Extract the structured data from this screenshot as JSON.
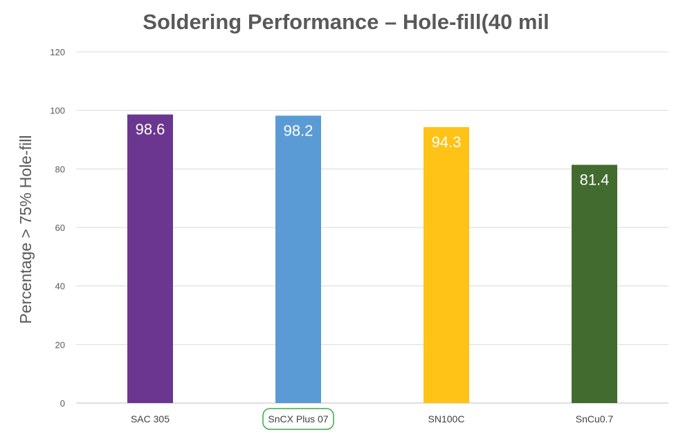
{
  "chart_data": {
    "type": "bar",
    "title": "Soldering Performance – Hole-fill(40 mil",
    "xlabel": "",
    "ylabel": "Percentage > 75% Hole-fill",
    "categories": [
      "SAC 305",
      "SnCX Plus 07",
      "SN100C",
      "SnCu0.7"
    ],
    "values": [
      98.6,
      98.2,
      94.3,
      81.4
    ],
    "data_labels": [
      "98.6",
      "98.2",
      "94.3",
      "81.4"
    ],
    "colors": [
      "#6a368f",
      "#5b9bd5",
      "#ffc217",
      "#426b2f"
    ],
    "highlighted_category": "SnCX Plus 07",
    "highlight_color": "#3aa845",
    "ylim": [
      0,
      120
    ],
    "yticks": [
      0,
      20,
      40,
      60,
      80,
      100,
      120
    ],
    "grid": true,
    "legend": "none"
  }
}
